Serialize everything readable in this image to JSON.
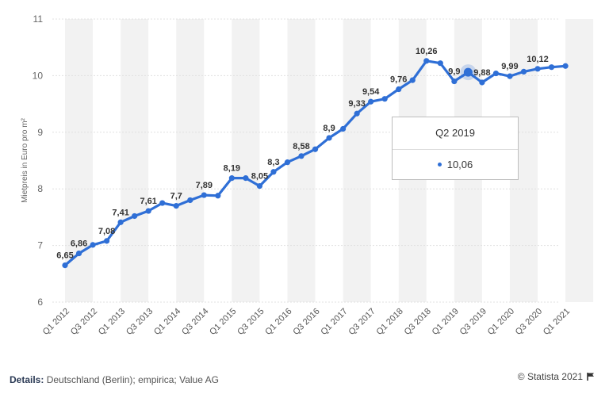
{
  "chart_data": {
    "type": "line",
    "ylabel": "Mietpreis in Euro pro m²",
    "ylim": [
      6,
      11
    ],
    "yticks": [
      "6",
      "7",
      "8",
      "9",
      "10",
      "11"
    ],
    "x_tick_labels": [
      "Q1 2012",
      "Q3 2012",
      "Q1 2013",
      "Q3 2013",
      "Q1 2014",
      "Q3 2014",
      "Q1 2015",
      "Q3 2015",
      "Q1 2016",
      "Q3 2016",
      "Q1 2017",
      "Q3 2017",
      "Q1 2018",
      "Q3 2018",
      "Q1 2019",
      "Q3 2019",
      "Q1 2020",
      "Q3 2020",
      "Q1 2021"
    ],
    "series": [
      {
        "color": "#2f6fd6",
        "values": [
          6.65,
          6.86,
          7.01,
          7.08,
          7.41,
          7.52,
          7.61,
          7.75,
          7.7,
          7.8,
          7.89,
          7.88,
          8.19,
          8.19,
          8.05,
          8.3,
          8.47,
          8.58,
          8.7,
          8.9,
          9.06,
          9.33,
          9.54,
          9.59,
          9.76,
          9.92,
          10.26,
          10.22,
          9.9,
          10.06,
          9.88,
          10.04,
          9.99,
          10.07,
          10.12,
          10.15,
          10.17
        ],
        "data_labels": {
          "0": "6,65",
          "1": "6,86",
          "3": "7,08",
          "4": "7,41",
          "6": "7,61",
          "8": "7,7",
          "10": "7,89",
          "12": "8,19",
          "14": "8,05",
          "15": "8,3",
          "17": "8,58",
          "19": "8,9",
          "21": "9,33",
          "22": "9,54",
          "24": "9,76",
          "26": "10,26",
          "28": "9,9",
          "30": "9,88",
          "32": "9,99",
          "34": "10,12"
        }
      }
    ],
    "highlight_index": 29,
    "grid": "horizontal",
    "legend": "none"
  },
  "tooltip": {
    "title": "Q2 2019",
    "value": "10,06"
  },
  "details": {
    "label": "Details:",
    "text": "Deutschland (Berlin); empirica; Value AG"
  },
  "credit": "© Statista 2021"
}
